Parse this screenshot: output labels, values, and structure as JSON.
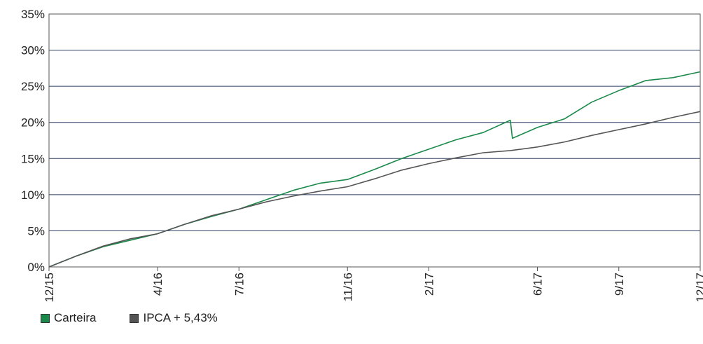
{
  "chart_data": {
    "type": "line",
    "title": "",
    "xlabel": "",
    "ylabel": "",
    "ylim": [
      0,
      35
    ],
    "y_ticks": [
      "0%",
      "5%",
      "10%",
      "15%",
      "20%",
      "25%",
      "30%",
      "35%"
    ],
    "x_ticks": [
      "12/15",
      "4/16",
      "7/16",
      "11/16",
      "2/17",
      "6/17",
      "9/17",
      "12/17"
    ],
    "grid": "horizontal",
    "legend_position": "bottom-left",
    "series": [
      {
        "name": "Carteira",
        "color": "#1a8a4a",
        "x": [
          "12/15",
          "1/16",
          "2/16",
          "3/16",
          "4/16",
          "5/16",
          "6/16",
          "7/16",
          "8/16",
          "9/16",
          "10/16",
          "11/16",
          "12/16",
          "1/17",
          "2/17",
          "3/17",
          "4/17",
          "5/17",
          "5/17",
          "6/17",
          "7/17",
          "8/17",
          "9/17",
          "10/17",
          "11/17",
          "12/17"
        ],
        "values": [
          0.0,
          1.5,
          2.8,
          3.7,
          4.6,
          5.9,
          7.0,
          8.0,
          9.3,
          10.6,
          11.6,
          12.1,
          13.5,
          15.0,
          16.3,
          17.6,
          18.6,
          20.3,
          17.8,
          19.3,
          20.5,
          22.8,
          24.4,
          25.8,
          26.2,
          27.0
        ]
      },
      {
        "name": "IPCA + 5,43%",
        "color": "#555555",
        "x": [
          "12/15",
          "1/16",
          "2/16",
          "3/16",
          "4/16",
          "5/16",
          "6/16",
          "7/16",
          "8/16",
          "9/16",
          "10/16",
          "11/16",
          "12/16",
          "1/17",
          "2/17",
          "3/17",
          "4/17",
          "5/17",
          "6/17",
          "7/17",
          "8/17",
          "9/17",
          "10/17",
          "11/17",
          "12/17"
        ],
        "values": [
          0.0,
          1.5,
          2.9,
          3.9,
          4.6,
          5.9,
          7.1,
          8.0,
          9.0,
          9.8,
          10.5,
          11.1,
          12.2,
          13.4,
          14.3,
          15.1,
          15.8,
          16.1,
          16.6,
          17.3,
          18.2,
          19.0,
          19.8,
          20.7,
          21.5
        ]
      }
    ]
  },
  "legend": {
    "items": [
      {
        "label": "Carteira",
        "color": "#1a8a4a"
      },
      {
        "label": "IPCA + 5,43%",
        "color": "#555555"
      }
    ]
  }
}
